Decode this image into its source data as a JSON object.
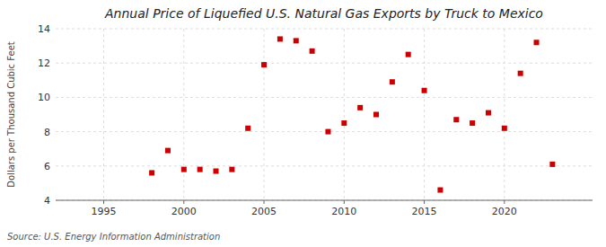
{
  "chart_data": {
    "type": "scatter",
    "title": "Annual Price of Liquefied U.S. Natural Gas Exports by Truck to Mexico",
    "ylabel": "Dollars per Thousand Cubic Feet",
    "annotations": [
      "Source: U.S. Energy Information Administration"
    ],
    "x": [
      1998,
      1999,
      2000,
      2001,
      2002,
      2003,
      2004,
      2005,
      2006,
      2007,
      2008,
      2009,
      2010,
      2011,
      2012,
      2013,
      2014,
      2015,
      2016,
      2017,
      2018,
      2019,
      2020,
      2021,
      2022,
      2023
    ],
    "values": [
      5.6,
      6.9,
      5.8,
      5.8,
      5.7,
      5.8,
      8.2,
      11.9,
      13.4,
      13.3,
      12.7,
      8.0,
      8.5,
      9.4,
      9.0,
      10.9,
      12.5,
      10.4,
      4.6,
      8.7,
      8.5,
      9.1,
      8.2,
      11.4,
      13.2,
      6.1
    ],
    "color": "#cc0000",
    "marker": "square",
    "xlim": [
      1992,
      2025.5
    ],
    "ylim": [
      4,
      14
    ],
    "xticks": [
      1995,
      2000,
      2005,
      2010,
      2015,
      2020
    ],
    "yticks": [
      4,
      6,
      8,
      10,
      12,
      14
    ],
    "grid": true
  }
}
